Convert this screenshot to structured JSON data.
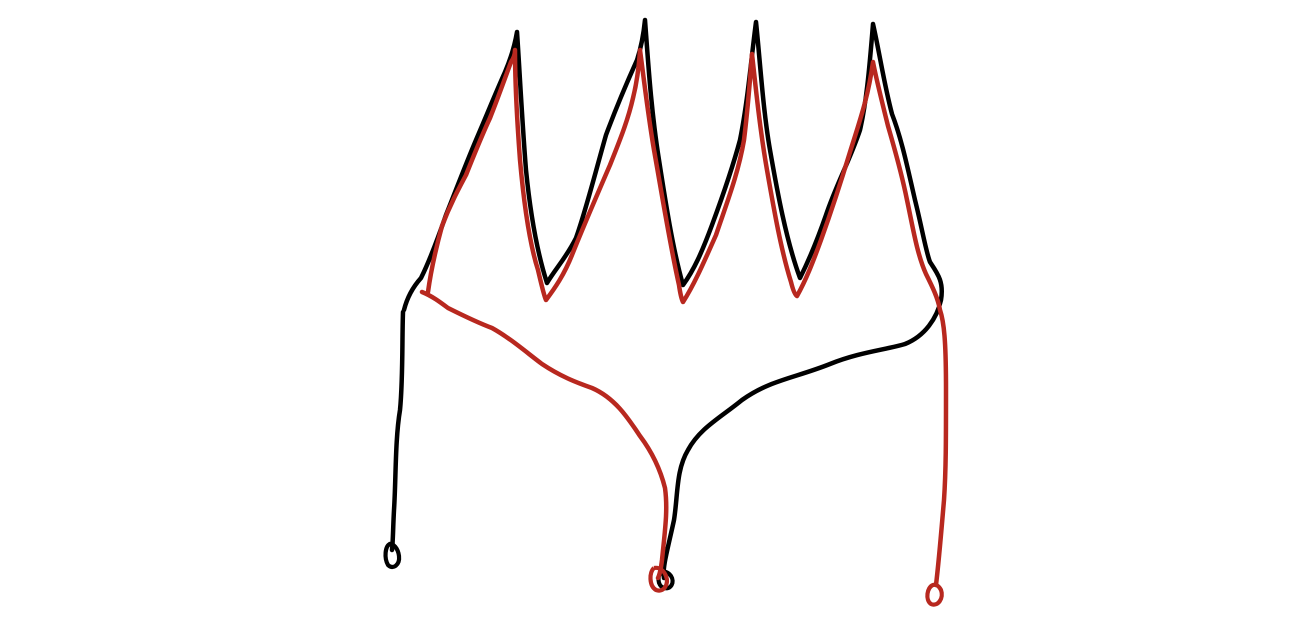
{
  "canvas": {
    "background": "#ffffff"
  },
  "strokes": {
    "black": {
      "color": "#000000",
      "description_label": ""
    },
    "red": {
      "color": "#b8281f",
      "description_label": ""
    }
  }
}
